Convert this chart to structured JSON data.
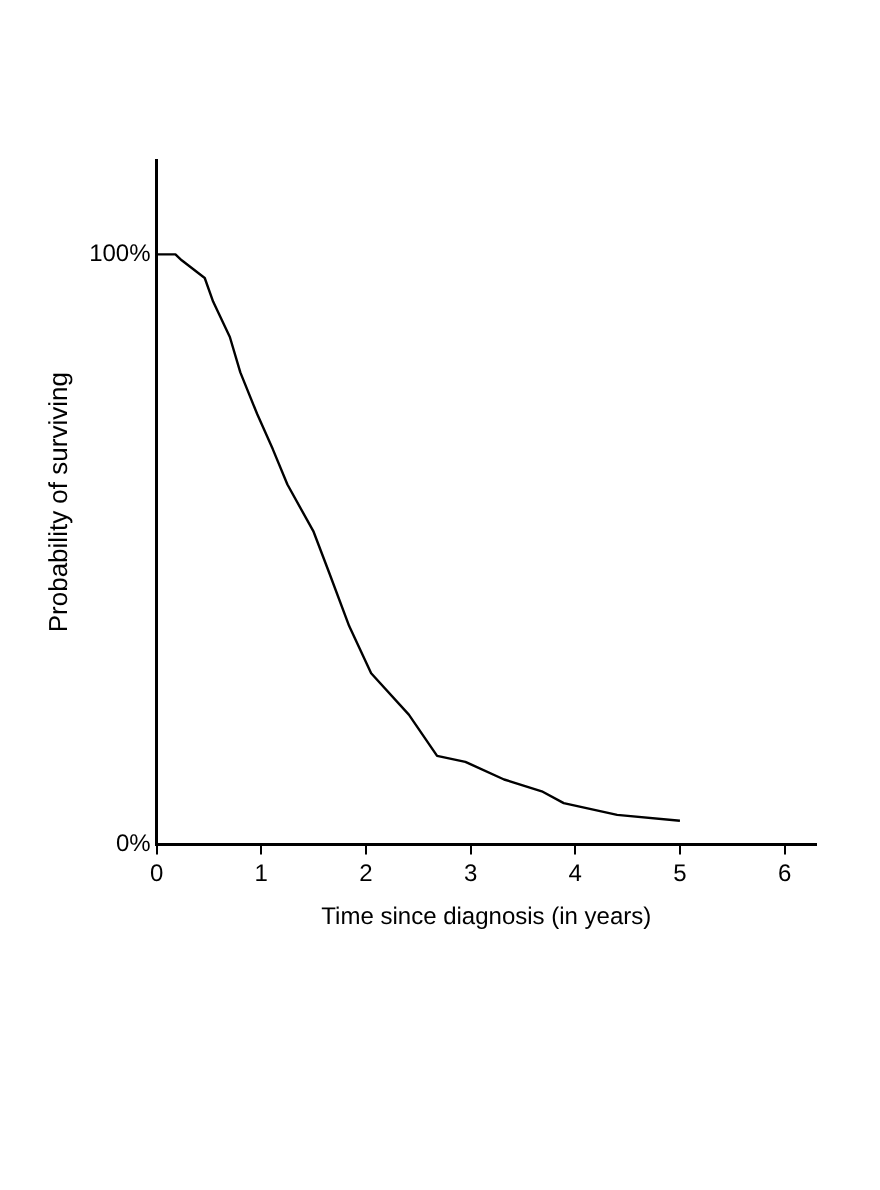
{
  "chart_data": {
    "type": "line",
    "xlabel": "Time since diagnosis (in years)",
    "ylabel": "Probability of surviving",
    "x": [
      0,
      0.18,
      0.24,
      0.46,
      0.54,
      0.7,
      0.8,
      0.96,
      1.11,
      1.25,
      1.5,
      1.65,
      1.84,
      2.05,
      2.41,
      2.68,
      2.95,
      3.32,
      3.68,
      3.89,
      4.4,
      5.0
    ],
    "series": [
      {
        "color": "#000000",
        "values": [
          100,
          100,
          99,
          96,
          92,
          86,
          80,
          73,
          67,
          61,
          53,
          46,
          37,
          29,
          22,
          15,
          14,
          11,
          9,
          7,
          5,
          4
        ]
      }
    ],
    "xlim": [
      0,
      6.3
    ],
    "xticks": [
      0,
      1,
      2,
      3,
      4,
      5,
      6
    ],
    "ylim": [
      0,
      116
    ],
    "yticks": [
      {
        "value": 0,
        "label": "0%"
      },
      {
        "value": 100,
        "label": "100%"
      }
    ],
    "grid": false,
    "legend": false,
    "marker": "none",
    "line_style": "solid"
  }
}
